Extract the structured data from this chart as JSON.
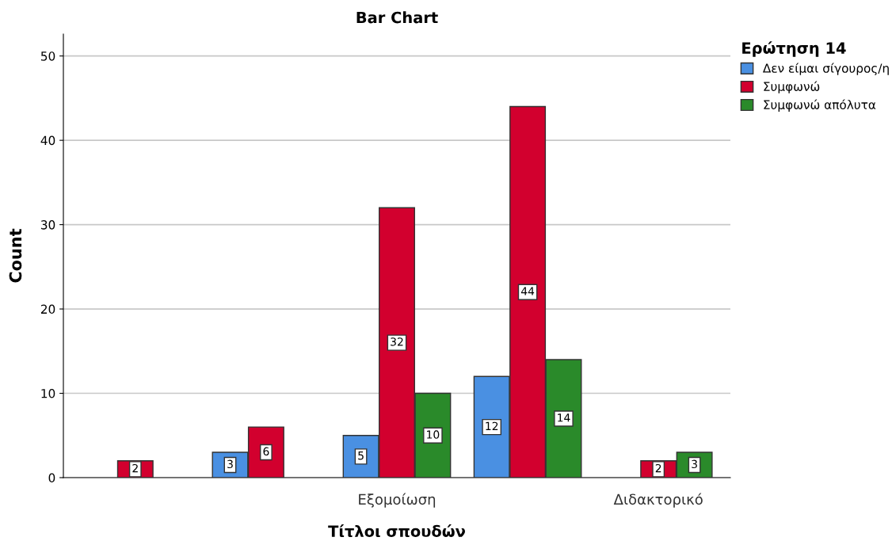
{
  "chart_data": {
    "type": "bar",
    "title": "Bar Chart",
    "xlabel": "Τίτλοι σπουδών",
    "ylabel": "Count",
    "legend_title": "Ερώτηση 14",
    "categories": [
      null,
      null,
      "Εξομοίωση",
      null,
      "Διδακτορικό"
    ],
    "series": [
      {
        "name": "Δεν είμαι σίγουρος/η",
        "color": "#4a90e2",
        "values": [
          null,
          3,
          5,
          12,
          null
        ]
      },
      {
        "name": "Συμφωνώ",
        "color": "#d2002e",
        "values": [
          2,
          6,
          32,
          44,
          2
        ]
      },
      {
        "name": "Συμφωνώ απόλυτα",
        "color": "#2a8a2a",
        "values": [
          null,
          null,
          10,
          14,
          3
        ]
      }
    ],
    "ylim": [
      0,
      52.6
    ],
    "yticks": [
      0,
      10,
      20,
      30,
      40,
      50
    ],
    "grid": "y",
    "legend": "top right",
    "data_labels": true
  }
}
